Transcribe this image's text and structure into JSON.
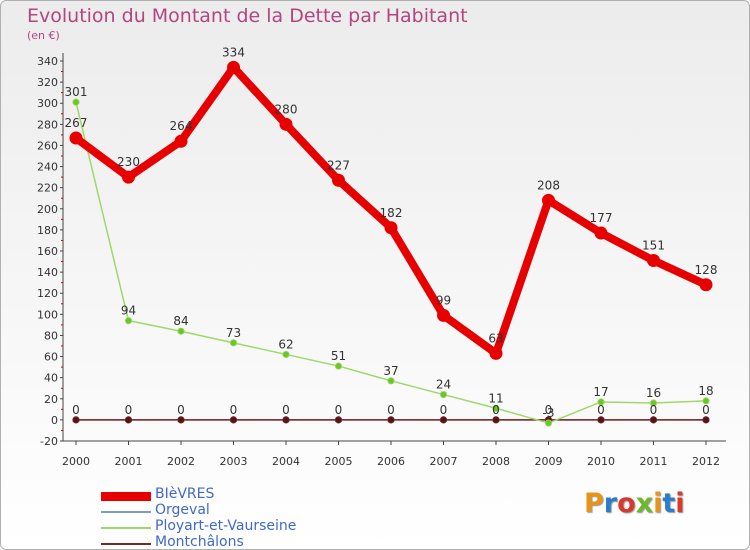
{
  "header": {
    "title": "Evolution du Montant de la Dette par Habitant",
    "unit": "(en €)"
  },
  "brand": {
    "name": "Proxiti",
    "letter_colors": [
      "#e8941a",
      "#2c7ccc",
      "#d8392a",
      "#6fb72c",
      "#e8941a",
      "#2c7ccc",
      "#d8392a"
    ]
  },
  "chart_data": {
    "type": "line",
    "title": "Evolution du Montant de la Dette par Habitant",
    "ylabel": "(en €)",
    "xlabel": "",
    "ylim": [
      -20,
      340
    ],
    "ytick_step": 20,
    "grid": false,
    "legend_position": "bottom-left",
    "categories": [
      "2000",
      "2001",
      "2002",
      "2003",
      "2004",
      "2005",
      "2006",
      "2007",
      "2008",
      "2009",
      "2010",
      "2011",
      "2012"
    ],
    "series": [
      {
        "name": "BIèVRES",
        "color": "#e60000",
        "style": "thick",
        "values": [
          267,
          230,
          264,
          334,
          280,
          227,
          182,
          99,
          63,
          208,
          177,
          151,
          128
        ],
        "labels": [
          "267",
          "230",
          "264",
          "334",
          "280",
          "227",
          "182",
          "99",
          "63",
          "208",
          "177",
          "151",
          "128"
        ]
      },
      {
        "name": "Orgeval",
        "color": "#7b9cc2",
        "style": "thin",
        "values": [
          0,
          0,
          0,
          0,
          0,
          0,
          0,
          0,
          0,
          0,
          0,
          0,
          0
        ],
        "labels": [
          "0",
          "0",
          "0",
          "0",
          "0",
          "0",
          "0",
          "0",
          "0",
          "0",
          "0",
          "0",
          "0"
        ]
      },
      {
        "name": "Ployart-et-Vaurseine",
        "color": "#9fd86a",
        "style": "thin",
        "values": [
          301,
          94,
          84,
          73,
          62,
          51,
          37,
          24,
          11,
          -3,
          17,
          16,
          18
        ],
        "labels": [
          "301",
          "94",
          "84",
          "73",
          "62",
          "51",
          "37",
          "24",
          "11",
          "-3",
          "17",
          "16",
          "18"
        ]
      },
      {
        "name": "Montchâlons",
        "color": "#7a2626",
        "style": "thin",
        "values": [
          0,
          0,
          0,
          0,
          0,
          0,
          0,
          0,
          0,
          0,
          0,
          0,
          0
        ],
        "labels": [
          "0",
          "0",
          "0",
          "0",
          "0",
          "0",
          "0",
          "0",
          "0",
          "0",
          "0",
          "0",
          "0"
        ]
      }
    ]
  }
}
